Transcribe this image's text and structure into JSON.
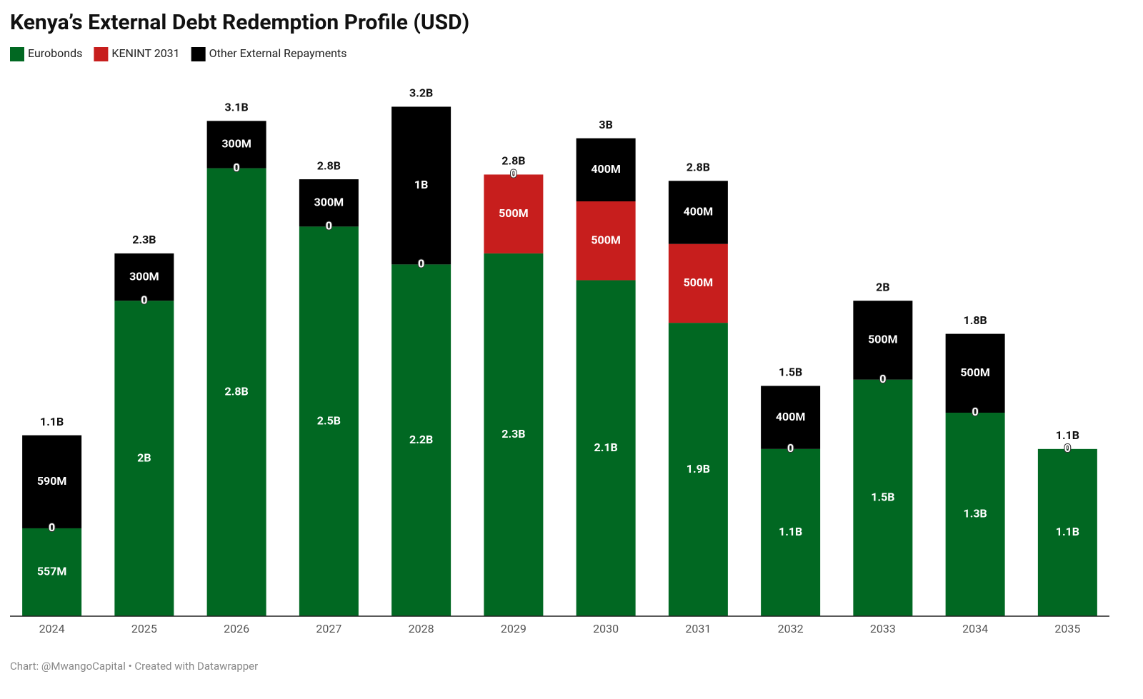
{
  "chart_data": {
    "type": "stacked-bar",
    "title": "Kenya’s External Debt Redemption Profile (USD)",
    "source": "Chart: @MwangoCapital • Created with Datawrapper",
    "categories": [
      "2024",
      "2025",
      "2026",
      "2027",
      "2028",
      "2029",
      "2030",
      "2031",
      "2032",
      "2033",
      "2034",
      "2035"
    ],
    "series": [
      {
        "name": "Eurobonds",
        "color": "#016822",
        "values": [
          557000000,
          2000000000,
          2840000000,
          2470000000,
          2230000000,
          2300000000,
          2130000000,
          1860000000,
          1060000000,
          1500000000,
          1290000000,
          1060000000
        ],
        "value_labels": [
          "557M",
          "2B",
          "2.8B",
          "2.5B",
          "2.2B",
          "2.3B",
          "2.1B",
          "1.9B",
          "1.1B",
          "1.5B",
          "1.3B",
          "1.1B"
        ]
      },
      {
        "name": "KENINT 2031",
        "color": "#c71e1d",
        "values": [
          0,
          0,
          0,
          0,
          0,
          500000000,
          500000000,
          500000000,
          0,
          0,
          0,
          0
        ],
        "value_labels": [
          "0",
          "0",
          "0",
          "0",
          "0",
          "500M",
          "500M",
          "500M",
          "0",
          "0",
          "0",
          "0"
        ]
      },
      {
        "name": "Other External Repayments",
        "color": "#000000",
        "values": [
          590000000,
          300000000,
          300000000,
          300000000,
          1000000000,
          0,
          400000000,
          400000000,
          400000000,
          500000000,
          500000000,
          0
        ],
        "value_labels": [
          "590M",
          "300M",
          "300M",
          "300M",
          "1B",
          "0",
          "400M",
          "400M",
          "400M",
          "500M",
          "500M",
          "0"
        ]
      }
    ],
    "totals": {
      "values": [
        1147000000,
        2300000000,
        3140000000,
        2770000000,
        3230000000,
        2800000000,
        3030000000,
        2760000000,
        1460000000,
        2000000000,
        1790000000,
        1060000000
      ],
      "value_labels": [
        "1.1B",
        "2.3B",
        "3.1B",
        "2.8B",
        "3.2B",
        "2.8B",
        "3B",
        "2.8B",
        "1.5B",
        "2B",
        "1.8B",
        "1.1B"
      ]
    },
    "ylim": [
      0,
      3300000000
    ],
    "legend": "top-left"
  }
}
